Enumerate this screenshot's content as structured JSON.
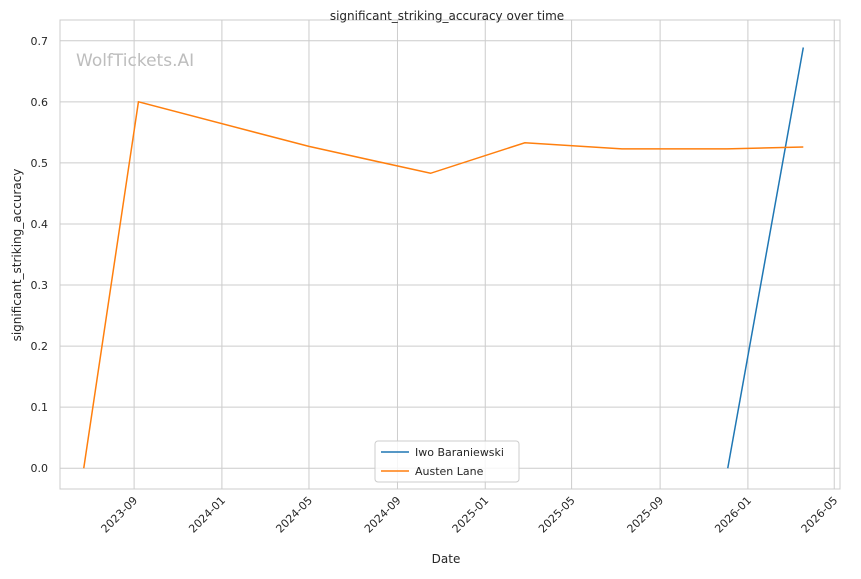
{
  "chart_data": {
    "type": "line",
    "title": "significant_striking_accuracy over time",
    "xlabel": "Date",
    "ylabel": "significant_striking_accuracy",
    "watermark": "WolfTickets.AI",
    "ylim": [
      -0.034,
      0.734
    ],
    "xlim": [
      "2023-05-21",
      "2026-05-09"
    ],
    "yticks": [
      "0.0",
      "0.1",
      "0.2",
      "0.3",
      "0.4",
      "0.5",
      "0.6",
      "0.7"
    ],
    "xticks": [
      "2023-09",
      "2024-01",
      "2024-05",
      "2024-09",
      "2025-01",
      "2025-05",
      "2025-09",
      "2026-01",
      "2026-05"
    ],
    "grid": true,
    "legend_position": "bottom-center",
    "series": [
      {
        "name": "Iwo Baraniewski",
        "color": "#1f77b4",
        "x": [
          "2025-12-04",
          "2026-03-19"
        ],
        "y": [
          0.0,
          0.689
        ]
      },
      {
        "name": "Austen Lane",
        "color": "#ff7f0e",
        "x": [
          "2023-06-23",
          "2023-09-07",
          "2024-05-01",
          "2024-10-17",
          "2025-02-25",
          "2025-07-10",
          "2025-12-03",
          "2026-03-19"
        ],
        "y": [
          0.0,
          0.6,
          0.527,
          0.483,
          0.533,
          0.523,
          0.523,
          0.526
        ]
      }
    ]
  }
}
